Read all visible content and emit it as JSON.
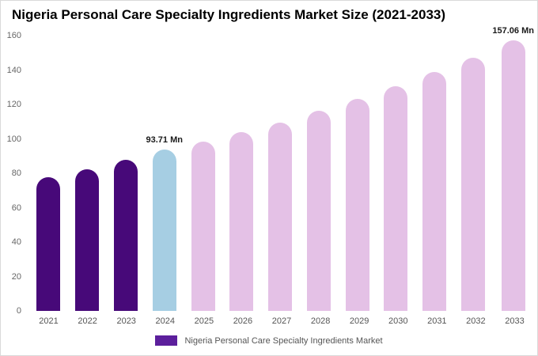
{
  "title": "Nigeria Personal Care Specialty Ingredients Market Size (2021-2033)",
  "chart_data": {
    "type": "bar",
    "categories": [
      "2021",
      "2022",
      "2023",
      "2024",
      "2025",
      "2026",
      "2027",
      "2028",
      "2029",
      "2030",
      "2031",
      "2032",
      "2033"
    ],
    "values": [
      77.5,
      82.3,
      87.6,
      93.71,
      98.3,
      103.9,
      109.6,
      116.2,
      123.3,
      130.8,
      138.7,
      147.1,
      157.06
    ],
    "point_labels": [
      "",
      "",
      "",
      "93.71 Mn",
      "",
      "",
      "",
      "",
      "",
      "",
      "",
      "",
      "157.06 Mn"
    ],
    "bar_colors": [
      "#470979",
      "#470979",
      "#470979",
      "#A6CEE3",
      "#E4C1E6",
      "#E4C1E6",
      "#E4C1E6",
      "#E4C1E6",
      "#E4C1E6",
      "#E4C1E6",
      "#E4C1E6",
      "#E4C1E6",
      "#E4C1E6"
    ],
    "ylim": [
      0,
      160
    ],
    "yticks": [
      0,
      20,
      40,
      60,
      80,
      100,
      120,
      140,
      160
    ],
    "grid": false,
    "title": "Nigeria Personal Care Specialty Ingredients Market Size (2021-2033)",
    "xlabel": "",
    "ylabel": "",
    "legend_position": "bottom"
  },
  "legend": {
    "label": "Nigeria Personal Care Specialty Ingredients Market",
    "swatch_color": "#5C1F9C"
  },
  "colors": {
    "dark_purple": "#470979",
    "highlight_blue": "#A6CEE3",
    "light_pink": "#E4C1E6",
    "background": "#FFFFFF"
  }
}
